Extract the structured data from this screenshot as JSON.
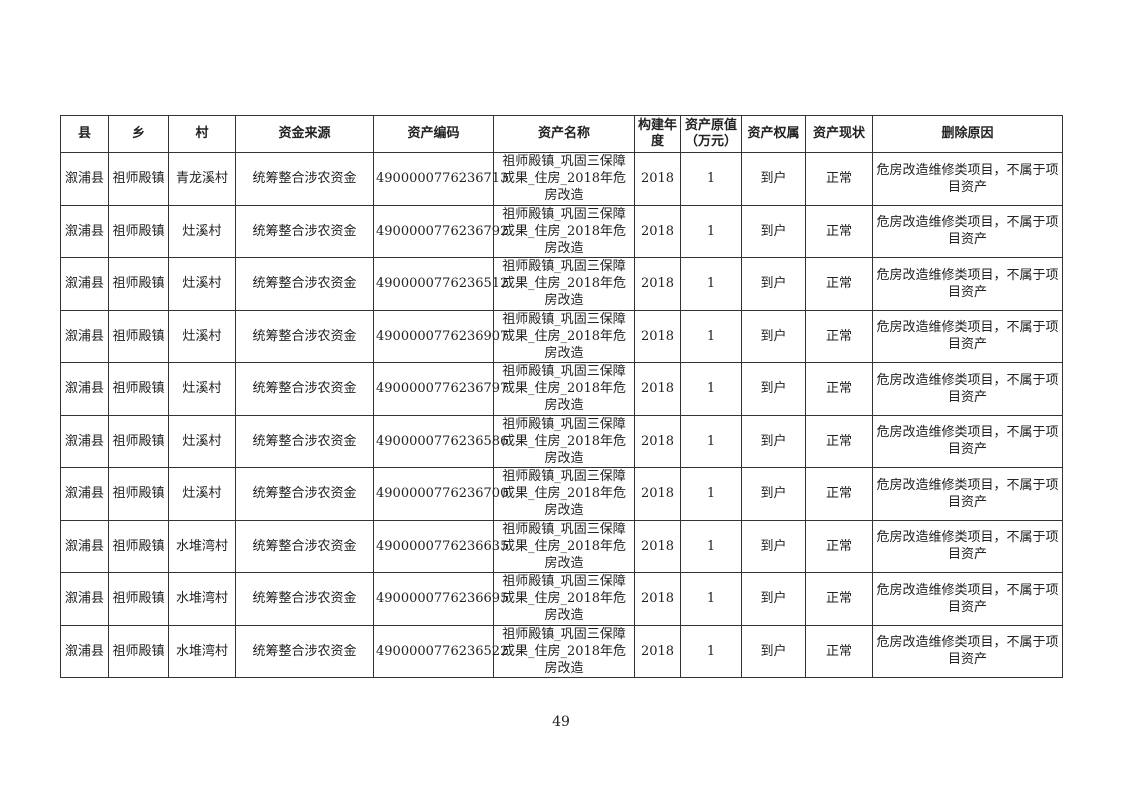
{
  "headers": [
    "县",
    "乡",
    "村",
    "资金来源",
    "资产编码",
    "资产名称",
    "构建年度",
    "资产原值（万元）",
    "资产权属",
    "资产现状",
    "删除原因"
  ],
  "rows": [
    [
      "溆浦县",
      "祖师殿镇",
      "青龙溪村",
      "统筹整合涉农资金",
      "4900000776236713",
      "祖师殿镇_巩固三保障成果_住房_2018年危房改造",
      "2018",
      "1",
      "到户",
      "正常",
      "危房改造维修类项目，不属于项目资产"
    ],
    [
      "溆浦县",
      "祖师殿镇",
      "灶溪村",
      "统筹整合涉农资金",
      "4900000776236792",
      "祖师殿镇_巩固三保障成果_住房_2018年危房改造",
      "2018",
      "1",
      "到户",
      "正常",
      "危房改造维修类项目，不属于项目资产"
    ],
    [
      "溆浦县",
      "祖师殿镇",
      "灶溪村",
      "统筹整合涉农资金",
      "4900000776236512",
      "祖师殿镇_巩固三保障成果_住房_2018年危房改造",
      "2018",
      "1",
      "到户",
      "正常",
      "危房改造维修类项目，不属于项目资产"
    ],
    [
      "溆浦县",
      "祖师殿镇",
      "灶溪村",
      "统筹整合涉农资金",
      "4900000776236907",
      "祖师殿镇_巩固三保障成果_住房_2018年危房改造",
      "2018",
      "1",
      "到户",
      "正常",
      "危房改造维修类项目，不属于项目资产"
    ],
    [
      "溆浦县",
      "祖师殿镇",
      "灶溪村",
      "统筹整合涉农资金",
      "4900000776236797",
      "祖师殿镇_巩固三保障成果_住房_2018年危房改造",
      "2018",
      "1",
      "到户",
      "正常",
      "危房改造维修类项目，不属于项目资产"
    ],
    [
      "溆浦县",
      "祖师殿镇",
      "灶溪村",
      "统筹整合涉农资金",
      "4900000776236586",
      "祖师殿镇_巩固三保障成果_住房_2018年危房改造",
      "2018",
      "1",
      "到户",
      "正常",
      "危房改造维修类项目，不属于项目资产"
    ],
    [
      "溆浦县",
      "祖师殿镇",
      "灶溪村",
      "统筹整合涉农资金",
      "4900000776236700",
      "祖师殿镇_巩固三保障成果_住房_2018年危房改造",
      "2018",
      "1",
      "到户",
      "正常",
      "危房改造维修类项目，不属于项目资产"
    ],
    [
      "溆浦县",
      "祖师殿镇",
      "水堆湾村",
      "统筹整合涉农资金",
      "4900000776236635",
      "祖师殿镇_巩固三保障成果_住房_2018年危房改造",
      "2018",
      "1",
      "到户",
      "正常",
      "危房改造维修类项目，不属于项目资产"
    ],
    [
      "溆浦县",
      "祖师殿镇",
      "水堆湾村",
      "统筹整合涉农资金",
      "4900000776236695",
      "祖师殿镇_巩固三保障成果_住房_2018年危房改造",
      "2018",
      "1",
      "到户",
      "正常",
      "危房改造维修类项目，不属于项目资产"
    ],
    [
      "溆浦县",
      "祖师殿镇",
      "水堆湾村",
      "统筹整合涉农资金",
      "4900000776236522",
      "祖师殿镇_巩固三保障成果_住房_2018年危房改造",
      "2018",
      "1",
      "到户",
      "正常",
      "危房改造维修类项目，不属于项目资产"
    ]
  ],
  "page_number": "49"
}
